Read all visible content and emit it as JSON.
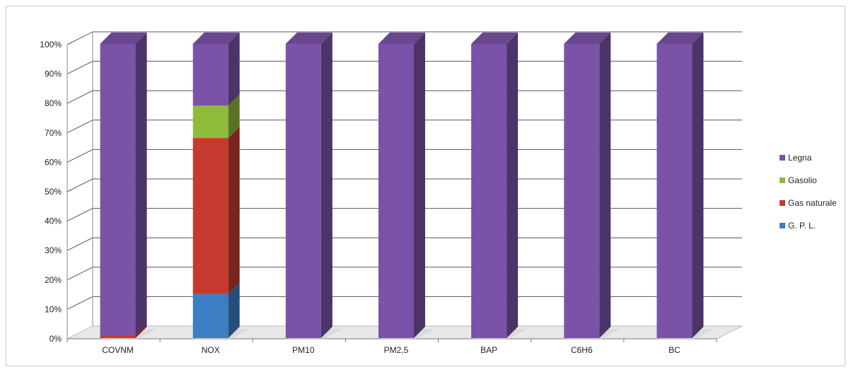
{
  "chart_data": {
    "type": "bar",
    "stacked": "percent",
    "three_d": true,
    "categories": [
      "COVNM",
      "NOX",
      "PM10",
      "PM2,5",
      "BAP",
      "C6H6",
      "BC"
    ],
    "series": [
      {
        "name": "G. P. L.",
        "color": "#3c7dc4",
        "values": [
          0,
          15,
          0,
          0,
          0,
          0,
          0
        ]
      },
      {
        "name": "Gas naturale",
        "color": "#c6392f",
        "values": [
          1,
          53,
          0,
          0,
          0,
          0,
          0
        ]
      },
      {
        "name": "Gasolio",
        "color": "#8fba3c",
        "values": [
          0,
          11,
          0,
          0,
          0,
          0,
          0
        ]
      },
      {
        "name": "Legna",
        "color": "#7a53a8",
        "values": [
          99,
          21,
          100,
          100,
          100,
          100,
          100
        ]
      }
    ],
    "yticks": [
      "0%",
      "10%",
      "20%",
      "30%",
      "40%",
      "50%",
      "60%",
      "70%",
      "80%",
      "90%",
      "100%"
    ],
    "ylim": [
      0,
      100
    ],
    "grid": true,
    "legend_position": "right",
    "legend_order": [
      "Legna",
      "Gasolio",
      "Gas naturale",
      "G. P. L."
    ]
  }
}
